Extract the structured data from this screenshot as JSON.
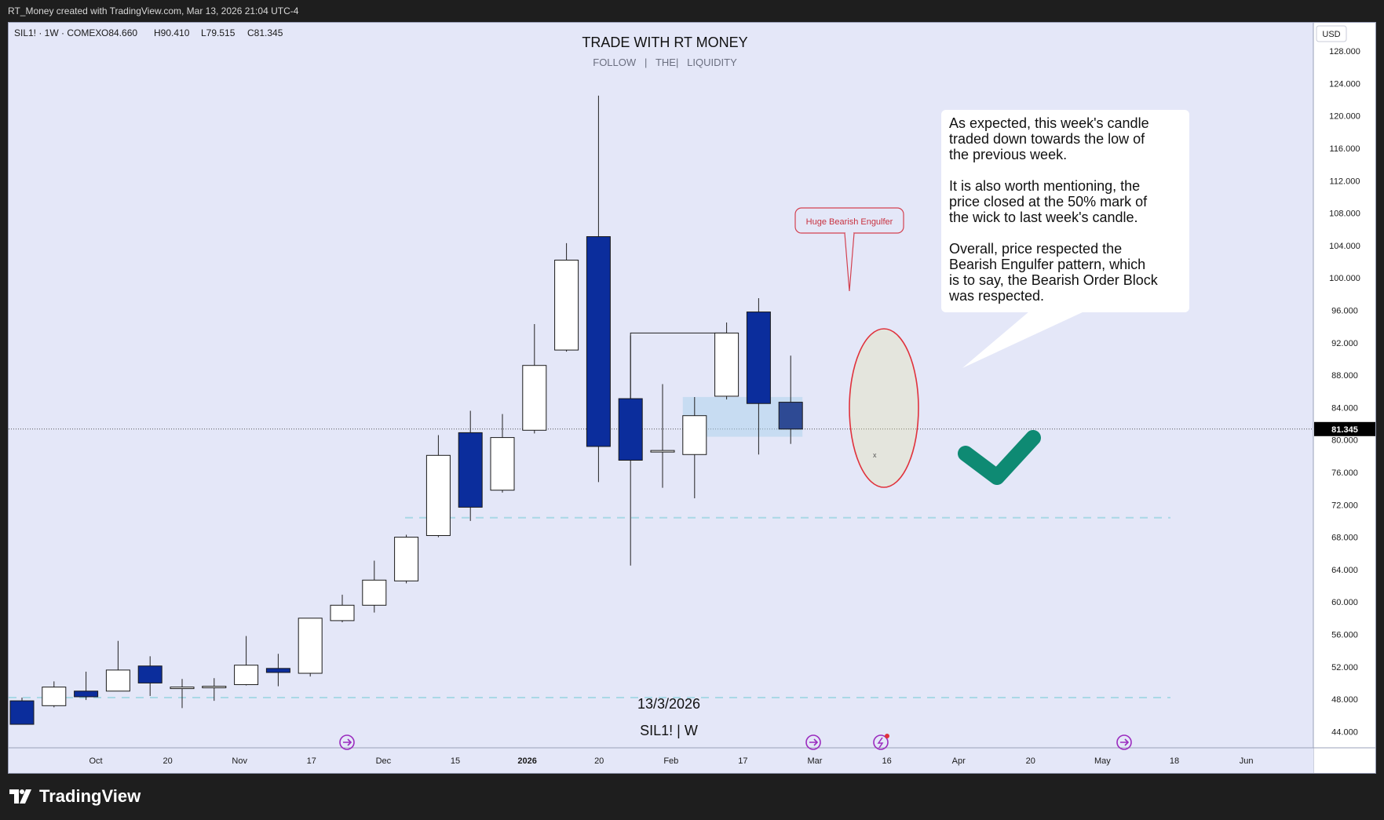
{
  "header": {
    "credit": "RT_Money created with TradingView.com, Mar 13, 2026 21:04 UTC-4"
  },
  "legend": {
    "symbol": "SIL1! · 1W · COMEX",
    "open": "O84.660",
    "high": "H90.410",
    "low": "L79.515",
    "close": "C81.345"
  },
  "title": {
    "main": "TRADE WITH RT MONEY",
    "sub": "FOLLOW   |   THE|   LIQUIDITY"
  },
  "watermark": {
    "date": "13/3/2026",
    "symbol": "SIL1! | W"
  },
  "axis": {
    "currency": "USD",
    "price_ticks": [
      "128.000",
      "124.000",
      "120.000",
      "116.000",
      "112.000",
      "108.000",
      "104.000",
      "100.000",
      "96.000",
      "92.000",
      "88.000",
      "84.000",
      "80.000",
      "76.000",
      "72.000",
      "68.000",
      "64.000",
      "60.000",
      "56.000",
      "52.000",
      "48.000",
      "44.000"
    ],
    "current_price_label": "81.345",
    "time_ticks": [
      "Oct",
      "20",
      "Nov",
      "17",
      "Dec",
      "15",
      "2026",
      "20",
      "Feb",
      "17",
      "Mar",
      "16",
      "Apr",
      "20",
      "May",
      "18",
      "Jun"
    ]
  },
  "annotations": {
    "callout_label": "Huge Bearish Engulfer",
    "note_lines": [
      "As expected, this week's candle",
      "traded down towards the low of",
      "the previous week.",
      "",
      "It is also worth mentioning, the",
      "price closed at the 50% mark of",
      "the wick to last week's candle.",
      "",
      "Overall, price respected the",
      "Bearish Engulfer pattern, which",
      "is to say, the Bearish Order Block",
      "was respected."
    ],
    "small_x": "x"
  },
  "branding": {
    "logo_text": "TradingView",
    "logo_icon": "tradingview-logo-icon"
  },
  "colors": {
    "background": "#e4e7f8",
    "bull_body": "#ffffff",
    "bear_body": "#0b2d9c",
    "current_bear_body": "#2e4a94",
    "dashed_level": "#a9d8e6",
    "ellipse_stroke": "#e0323c",
    "check": "#0e8a73",
    "callout": "#d34150",
    "event_icon": "#9b2cbf"
  },
  "chart_data": {
    "type": "candlestick",
    "title": "TRADE WITH RT MONEY",
    "symbol": "SIL1!",
    "interval": "1W",
    "exchange": "COMEX",
    "ylim": [
      42.0,
      131.5
    ],
    "candles": [
      {
        "o": 47.8,
        "h": 48.2,
        "l": 44.9,
        "c": 44.9
      },
      {
        "o": 47.2,
        "h": 50.2,
        "l": 47.0,
        "c": 49.5
      },
      {
        "o": 49.0,
        "h": 51.4,
        "l": 47.9,
        "c": 48.3
      },
      {
        "o": 49.0,
        "h": 55.2,
        "l": 49.0,
        "c": 51.6
      },
      {
        "o": 52.1,
        "h": 53.3,
        "l": 48.4,
        "c": 50.0
      },
      {
        "o": 49.5,
        "h": 50.5,
        "l": 46.9,
        "c": 49.5
      },
      {
        "o": 49.5,
        "h": 50.6,
        "l": 47.8,
        "c": 49.6
      },
      {
        "o": 49.8,
        "h": 55.8,
        "l": 49.7,
        "c": 52.2
      },
      {
        "o": 51.8,
        "h": 53.6,
        "l": 49.6,
        "c": 51.3
      },
      {
        "o": 51.2,
        "h": 58.0,
        "l": 50.8,
        "c": 58.0
      },
      {
        "o": 57.7,
        "h": 60.9,
        "l": 57.5,
        "c": 59.6
      },
      {
        "o": 59.6,
        "h": 65.1,
        "l": 58.7,
        "c": 62.7
      },
      {
        "o": 62.6,
        "h": 68.3,
        "l": 62.3,
        "c": 68.0
      },
      {
        "o": 68.2,
        "h": 80.6,
        "l": 68.0,
        "c": 78.1
      },
      {
        "o": 80.9,
        "h": 83.6,
        "l": 70.0,
        "c": 71.7
      },
      {
        "o": 73.8,
        "h": 83.2,
        "l": 73.5,
        "c": 80.3
      },
      {
        "o": 81.2,
        "h": 94.3,
        "l": 80.8,
        "c": 89.2
      },
      {
        "o": 91.1,
        "h": 104.3,
        "l": 90.9,
        "c": 102.2
      },
      {
        "o": 105.1,
        "h": 122.5,
        "l": 74.8,
        "c": 79.2
      },
      {
        "o": 85.1,
        "h": 92.9,
        "l": 64.5,
        "c": 77.5
      },
      {
        "o": 78.7,
        "h": 86.9,
        "l": 74.1,
        "c": 78.7
      },
      {
        "o": 78.2,
        "h": 85.3,
        "l": 72.8,
        "c": 83.0
      },
      {
        "o": 85.4,
        "h": 94.5,
        "l": 85.0,
        "c": 93.2
      },
      {
        "o": 95.8,
        "h": 97.5,
        "l": 78.2,
        "c": 84.5
      },
      {
        "o": 84.66,
        "h": 90.41,
        "l": 79.515,
        "c": 81.345
      }
    ],
    "current_price": 81.345,
    "levels": [
      {
        "price": 70.4,
        "style": "dashed"
      },
      {
        "price": 48.2,
        "style": "dashed"
      }
    ],
    "order_block": {
      "top": 85.3,
      "bottom": 80.4
    },
    "grid": false
  }
}
